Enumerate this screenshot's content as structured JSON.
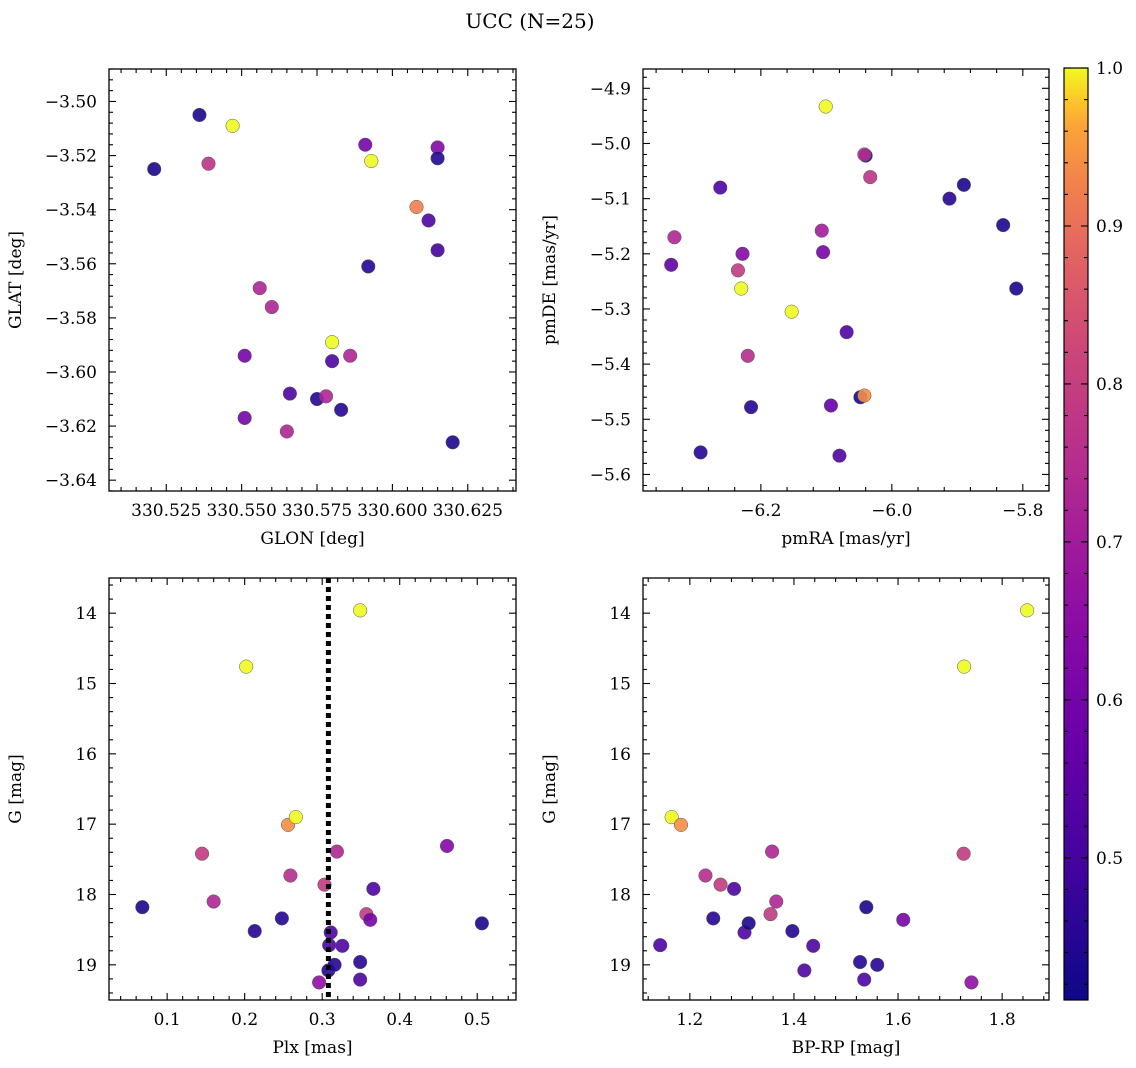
{
  "title": "UCC (N=25)",
  "colorbar": {
    "min": 0.41,
    "max": 1.0,
    "ticks": [
      0.5,
      0.6,
      0.7,
      0.8,
      0.9,
      1.0
    ],
    "tick_labels": [
      "0.5",
      "0.6",
      "0.7",
      "0.8",
      "0.9",
      "1.0"
    ],
    "colormap": "plasma"
  },
  "chart_data": [
    {
      "type": "scatter",
      "id": "glon-glat",
      "xlabel": "GLON [deg]",
      "ylabel": "GLAT [deg]",
      "xlim": [
        330.506,
        330.641
      ],
      "ylim": [
        -3.644,
        -3.488
      ],
      "y_inverted": false,
      "xticks": [
        330.525,
        330.55,
        330.575,
        330.6,
        330.625
      ],
      "xtick_labels": [
        "330.525",
        "330.550",
        "330.575",
        "330.600",
        "330.625"
      ],
      "yticks": [
        -3.5,
        -3.52,
        -3.54,
        -3.56,
        -3.58,
        -3.6,
        -3.62,
        -3.64
      ],
      "ytick_labels": [
        "−3.50",
        "−3.52",
        "−3.54",
        "−3.56",
        "−3.58",
        "−3.60",
        "−3.62",
        "−3.64"
      ],
      "points": [
        {
          "x": 330.521,
          "y": -3.525,
          "c": 0.43
        },
        {
          "x": 330.536,
          "y": -3.505,
          "c": 0.43
        },
        {
          "x": 330.539,
          "y": -3.523,
          "c": 0.77
        },
        {
          "x": 330.547,
          "y": -3.509,
          "c": 1.0
        },
        {
          "x": 330.551,
          "y": -3.594,
          "c": 0.6
        },
        {
          "x": 330.551,
          "y": -3.617,
          "c": 0.6
        },
        {
          "x": 330.556,
          "y": -3.569,
          "c": 0.73
        },
        {
          "x": 330.56,
          "y": -3.576,
          "c": 0.73
        },
        {
          "x": 330.565,
          "y": -3.622,
          "c": 0.73
        },
        {
          "x": 330.566,
          "y": -3.608,
          "c": 0.52
        },
        {
          "x": 330.575,
          "y": -3.61,
          "c": 0.45
        },
        {
          "x": 330.578,
          "y": -3.609,
          "c": 0.73
        },
        {
          "x": 330.58,
          "y": -3.589,
          "c": 1.0
        },
        {
          "x": 330.58,
          "y": -3.596,
          "c": 0.52
        },
        {
          "x": 330.583,
          "y": -3.614,
          "c": 0.45
        },
        {
          "x": 330.586,
          "y": -3.594,
          "c": 0.73
        },
        {
          "x": 330.591,
          "y": -3.516,
          "c": 0.6
        },
        {
          "x": 330.592,
          "y": -3.561,
          "c": 0.45
        },
        {
          "x": 330.593,
          "y": -3.522,
          "c": 1.0
        },
        {
          "x": 330.608,
          "y": -3.539,
          "c": 0.92
        },
        {
          "x": 330.612,
          "y": -3.544,
          "c": 0.52
        },
        {
          "x": 330.615,
          "y": -3.517,
          "c": 0.63
        },
        {
          "x": 330.615,
          "y": -3.521,
          "c": 0.45
        },
        {
          "x": 330.615,
          "y": -3.555,
          "c": 0.5
        },
        {
          "x": 330.62,
          "y": -3.626,
          "c": 0.43
        }
      ]
    },
    {
      "type": "scatter",
      "id": "pmra-pmde",
      "xlabel": "pmRA [mas/yr]",
      "ylabel": "pmDE [mas/yr]",
      "xlim": [
        -6.38,
        -5.76
      ],
      "ylim": [
        -5.63,
        -4.865
      ],
      "y_inverted": false,
      "xticks": [
        -6.2,
        -6.0,
        -5.8
      ],
      "xtick_labels": [
        "−6.2",
        "−6.0",
        "−5.8"
      ],
      "yticks": [
        -4.9,
        -5.0,
        -5.1,
        -5.2,
        -5.3,
        -5.4,
        -5.5,
        -5.6
      ],
      "ytick_labels": [
        "−4.9",
        "−5.0",
        "−5.1",
        "−5.2",
        "−5.3",
        "−5.4",
        "−5.5",
        "−5.6"
      ],
      "points": [
        {
          "x": -6.292,
          "y": -5.56,
          "c": 0.45
        },
        {
          "x": -6.337,
          "y": -5.22,
          "c": 0.56
        },
        {
          "x": -6.332,
          "y": -5.17,
          "c": 0.73
        },
        {
          "x": -6.262,
          "y": -5.08,
          "c": 0.52
        },
        {
          "x": -6.235,
          "y": -5.23,
          "c": 0.79
        },
        {
          "x": -6.23,
          "y": -5.263,
          "c": 1.0
        },
        {
          "x": -6.228,
          "y": -5.2,
          "c": 0.63
        },
        {
          "x": -6.22,
          "y": -5.385,
          "c": 0.75
        },
        {
          "x": -6.215,
          "y": -5.478,
          "c": 0.45
        },
        {
          "x": -6.153,
          "y": -5.305,
          "c": 1.0
        },
        {
          "x": -6.107,
          "y": -5.158,
          "c": 0.7
        },
        {
          "x": -6.105,
          "y": -5.197,
          "c": 0.6
        },
        {
          "x": -6.101,
          "y": -4.933,
          "c": 1.0
        },
        {
          "x": -6.093,
          "y": -5.475,
          "c": 0.57
        },
        {
          "x": -6.08,
          "y": -5.566,
          "c": 0.52
        },
        {
          "x": -6.069,
          "y": -5.342,
          "c": 0.52
        },
        {
          "x": -6.048,
          "y": -5.46,
          "c": 0.43
        },
        {
          "x": -6.042,
          "y": -5.457,
          "c": 0.94
        },
        {
          "x": -6.04,
          "y": -5.022,
          "c": 0.45
        },
        {
          "x": -6.042,
          "y": -5.02,
          "c": 0.75
        },
        {
          "x": -6.033,
          "y": -5.061,
          "c": 0.77
        },
        {
          "x": -5.912,
          "y": -5.1,
          "c": 0.45
        },
        {
          "x": -5.89,
          "y": -5.075,
          "c": 0.43
        },
        {
          "x": -5.83,
          "y": -5.148,
          "c": 0.43
        },
        {
          "x": -5.81,
          "y": -5.263,
          "c": 0.43
        }
      ]
    },
    {
      "type": "scatter",
      "id": "plx-g",
      "xlabel": "Plx [mas]",
      "ylabel": "G [mag]",
      "xlim": [
        0.025,
        0.55
      ],
      "ylim": [
        19.5,
        13.5
      ],
      "y_inverted": true,
      "vline": {
        "x": 0.308,
        "style": "dotted"
      },
      "xticks": [
        0.1,
        0.2,
        0.3,
        0.4,
        0.5
      ],
      "xtick_labels": [
        "0.1",
        "0.2",
        "0.3",
        "0.4",
        "0.5"
      ],
      "yticks": [
        14,
        15,
        16,
        17,
        18,
        19
      ],
      "ytick_labels": [
        "14",
        "15",
        "16",
        "17",
        "18",
        "19"
      ],
      "points": [
        {
          "x": 0.068,
          "y": 18.18,
          "c": 0.43
        },
        {
          "x": 0.145,
          "y": 17.42,
          "c": 0.79
        },
        {
          "x": 0.16,
          "y": 18.1,
          "c": 0.73
        },
        {
          "x": 0.202,
          "y": 14.76,
          "c": 1.0
        },
        {
          "x": 0.213,
          "y": 18.52,
          "c": 0.45
        },
        {
          "x": 0.248,
          "y": 18.34,
          "c": 0.45
        },
        {
          "x": 0.256,
          "y": 17.01,
          "c": 0.94
        },
        {
          "x": 0.259,
          "y": 17.73,
          "c": 0.75
        },
        {
          "x": 0.266,
          "y": 16.9,
          "c": 1.0
        },
        {
          "x": 0.296,
          "y": 19.25,
          "c": 0.66
        },
        {
          "x": 0.303,
          "y": 17.86,
          "c": 0.79
        },
        {
          "x": 0.308,
          "y": 19.08,
          "c": 0.45
        },
        {
          "x": 0.309,
          "y": 18.72,
          "c": 0.52
        },
        {
          "x": 0.311,
          "y": 18.54,
          "c": 0.52
        },
        {
          "x": 0.316,
          "y": 19.0,
          "c": 0.45
        },
        {
          "x": 0.319,
          "y": 17.39,
          "c": 0.73
        },
        {
          "x": 0.326,
          "y": 18.73,
          "c": 0.52
        },
        {
          "x": 0.349,
          "y": 13.96,
          "c": 1.0
        },
        {
          "x": 0.349,
          "y": 18.96,
          "c": 0.45
        },
        {
          "x": 0.349,
          "y": 19.21,
          "c": 0.52
        },
        {
          "x": 0.357,
          "y": 18.28,
          "c": 0.79
        },
        {
          "x": 0.362,
          "y": 18.36,
          "c": 0.6
        },
        {
          "x": 0.366,
          "y": 17.92,
          "c": 0.52
        },
        {
          "x": 0.461,
          "y": 17.31,
          "c": 0.63
        },
        {
          "x": 0.506,
          "y": 18.41,
          "c": 0.43
        }
      ]
    },
    {
      "type": "scatter",
      "id": "bprp-g",
      "xlabel": "BP-RP [mag]",
      "ylabel": "G [mag]",
      "xlim": [
        1.11,
        1.89
      ],
      "ylim": [
        19.5,
        13.5
      ],
      "y_inverted": true,
      "xticks": [
        1.2,
        1.4,
        1.6,
        1.8
      ],
      "xtick_labels": [
        "1.2",
        "1.4",
        "1.6",
        "1.8"
      ],
      "yticks": [
        14,
        15,
        16,
        17,
        18,
        19
      ],
      "ytick_labels": [
        "14",
        "15",
        "16",
        "17",
        "18",
        "19"
      ],
      "points": [
        {
          "x": 1.143,
          "y": 18.72,
          "c": 0.52
        },
        {
          "x": 1.165,
          "y": 16.9,
          "c": 1.0
        },
        {
          "x": 1.183,
          "y": 17.01,
          "c": 0.94
        },
        {
          "x": 1.23,
          "y": 17.73,
          "c": 0.75
        },
        {
          "x": 1.245,
          "y": 18.34,
          "c": 0.45
        },
        {
          "x": 1.259,
          "y": 17.86,
          "c": 0.79
        },
        {
          "x": 1.285,
          "y": 17.92,
          "c": 0.52
        },
        {
          "x": 1.305,
          "y": 18.54,
          "c": 0.52
        },
        {
          "x": 1.313,
          "y": 18.41,
          "c": 0.43
        },
        {
          "x": 1.355,
          "y": 18.28,
          "c": 0.79
        },
        {
          "x": 1.358,
          "y": 17.39,
          "c": 0.73
        },
        {
          "x": 1.366,
          "y": 18.1,
          "c": 0.73
        },
        {
          "x": 1.397,
          "y": 18.52,
          "c": 0.45
        },
        {
          "x": 1.42,
          "y": 19.08,
          "c": 0.52
        },
        {
          "x": 1.437,
          "y": 18.73,
          "c": 0.52
        },
        {
          "x": 1.527,
          "y": 18.96,
          "c": 0.45
        },
        {
          "x": 1.535,
          "y": 19.21,
          "c": 0.52
        },
        {
          "x": 1.539,
          "y": 18.18,
          "c": 0.43
        },
        {
          "x": 1.56,
          "y": 19.0,
          "c": 0.45
        },
        {
          "x": 1.61,
          "y": 18.36,
          "c": 0.6
        },
        {
          "x": 1.726,
          "y": 17.42,
          "c": 0.79
        },
        {
          "x": 1.727,
          "y": 14.76,
          "c": 1.0
        },
        {
          "x": 1.741,
          "y": 19.25,
          "c": 0.66
        },
        {
          "x": 1.848,
          "y": 13.96,
          "c": 1.0
        }
      ]
    }
  ]
}
